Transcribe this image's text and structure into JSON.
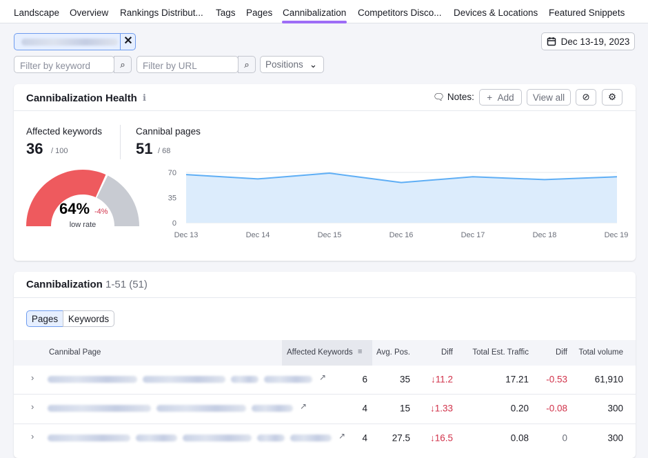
{
  "tabs": [
    "Landscape",
    "Overview",
    "Rankings Distribut...",
    "Tags",
    "Pages",
    "Cannibalization",
    "Competitors Disco...",
    "Devices & Locations",
    "Featured Snippets"
  ],
  "active_tab": "Cannibalization",
  "date_range": "Dec 13-19, 2023",
  "filters": {
    "keyword_placeholder": "Filter by keyword",
    "url_placeholder": "Filter by URL",
    "positions": "Positions"
  },
  "health": {
    "title": "Cannibalization Health",
    "notes_label": "Notes:",
    "add_button": "Add",
    "view_all_button": "View all",
    "affected_keywords": {
      "label": "Affected keywords",
      "value": "36",
      "total": "/ 100"
    },
    "cannibal_pages": {
      "label": "Cannibal pages",
      "value": "51",
      "total": "/ 68"
    },
    "gauge": {
      "value": 64,
      "value_label": "64%",
      "change": -4,
      "change_label": "-4%",
      "caption": "low rate"
    },
    "trend_chart": {
      "type": "area",
      "x": [
        "Dec 13",
        "Dec 14",
        "Dec 15",
        "Dec 16",
        "Dec 17",
        "Dec 18",
        "Dec 19"
      ],
      "values": [
        67,
        61,
        69,
        56,
        64,
        60,
        64
      ],
      "ylim": [
        0,
        70
      ],
      "yticks": [
        0,
        35,
        70
      ],
      "color": "#5eaef5"
    }
  },
  "table": {
    "title": "Cannibalization",
    "range": "1-51 (51)",
    "toggle": [
      "Pages",
      "Keywords"
    ],
    "columns": [
      "Cannibal Page",
      "Affected Keywords",
      "Avg. Pos.",
      "Diff",
      "Total Est. Traffic",
      "Diff",
      "Total volume"
    ],
    "rows": [
      [
        "6",
        "35",
        "↓11.2",
        "17.21",
        "-0.53",
        "61,910"
      ],
      [
        "4",
        "15",
        "↓1.33",
        "0.20",
        "-0.08",
        "300"
      ],
      [
        "4",
        "27.5",
        "↓16.5",
        "0.08",
        "0",
        "300"
      ]
    ]
  }
}
